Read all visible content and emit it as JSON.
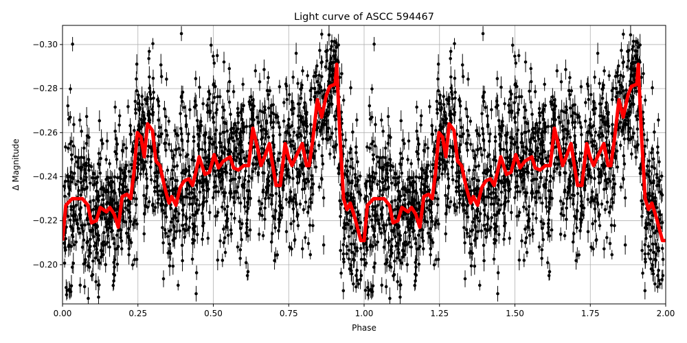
{
  "chart_data": {
    "type": "scatter",
    "title": "Light curve of ASCC 594467",
    "xlabel": "Phase",
    "ylabel": "Δ Magnitude",
    "xlim": [
      0,
      2
    ],
    "ylim": [
      -0.1822,
      -0.3087
    ],
    "y_inverted": true,
    "grid": true,
    "x_ticks": [
      "0.00",
      "0.25",
      "0.50",
      "0.75",
      "1.00",
      "1.25",
      "1.50",
      "1.75",
      "2.00"
    ],
    "x_tick_values": [
      0,
      0.25,
      0.5,
      0.75,
      1,
      1.25,
      1.5,
      1.75,
      2
    ],
    "y_ticks": [
      "−0.30",
      "−0.28",
      "−0.26",
      "−0.24",
      "−0.22",
      "−0.20"
    ],
    "y_tick_values": [
      -0.3,
      -0.28,
      -0.26,
      -0.24,
      -0.22,
      -0.2
    ],
    "scatter_color": "#000000",
    "model_color": "#ff0000",
    "model_curve": {
      "x": [
        0.0,
        0.011,
        0.032,
        0.066,
        0.084,
        0.096,
        0.112,
        0.125,
        0.146,
        0.157,
        0.171,
        0.185,
        0.198,
        0.214,
        0.226,
        0.237,
        0.248,
        0.26,
        0.271,
        0.282,
        0.298,
        0.31,
        0.323,
        0.339,
        0.353,
        0.362,
        0.376,
        0.39,
        0.403,
        0.419,
        0.431,
        0.442,
        0.453,
        0.472,
        0.487,
        0.503,
        0.517,
        0.533,
        0.556,
        0.567,
        0.583,
        0.601,
        0.617,
        0.631,
        0.647,
        0.658,
        0.67,
        0.686,
        0.697,
        0.708,
        0.722,
        0.738,
        0.749,
        0.761,
        0.777,
        0.795,
        0.809,
        0.818,
        0.831,
        0.845,
        0.859,
        0.875,
        0.886,
        0.904,
        0.909,
        0.92,
        0.932,
        0.943,
        0.954,
        0.97,
        0.989,
        1.0,
        1.011,
        1.032,
        1.066,
        1.084,
        1.096,
        1.112,
        1.125,
        1.146,
        1.157,
        1.171,
        1.185,
        1.198,
        1.214,
        1.226,
        1.237,
        1.248,
        1.26,
        1.271,
        1.282,
        1.298,
        1.31,
        1.323,
        1.339,
        1.353,
        1.362,
        1.376,
        1.39,
        1.403,
        1.419,
        1.431,
        1.442,
        1.453,
        1.472,
        1.487,
        1.503,
        1.517,
        1.533,
        1.556,
        1.567,
        1.583,
        1.601,
        1.617,
        1.631,
        1.647,
        1.658,
        1.67,
        1.686,
        1.697,
        1.708,
        1.722,
        1.738,
        1.749,
        1.761,
        1.777,
        1.795,
        1.809,
        1.818,
        1.831,
        1.845,
        1.859,
        1.875,
        1.886,
        1.904,
        1.909,
        1.92,
        1.932,
        1.943,
        1.954,
        1.97,
        1.989,
        2.0
      ],
      "y": [
        -0.211,
        -0.227,
        -0.23,
        -0.23,
        -0.227,
        -0.219,
        -0.22,
        -0.226,
        -0.224,
        -0.226,
        -0.223,
        -0.217,
        -0.231,
        -0.232,
        -0.23,
        -0.242,
        -0.26,
        -0.258,
        -0.249,
        -0.264,
        -0.261,
        -0.247,
        -0.245,
        -0.235,
        -0.228,
        -0.231,
        -0.227,
        -0.235,
        -0.238,
        -0.239,
        -0.236,
        -0.242,
        -0.249,
        -0.241,
        -0.242,
        -0.25,
        -0.244,
        -0.247,
        -0.249,
        -0.244,
        -0.243,
        -0.245,
        -0.245,
        -0.262,
        -0.253,
        -0.245,
        -0.249,
        -0.255,
        -0.245,
        -0.236,
        -0.236,
        -0.255,
        -0.249,
        -0.245,
        -0.25,
        -0.255,
        -0.245,
        -0.245,
        -0.258,
        -0.275,
        -0.267,
        -0.277,
        -0.281,
        -0.282,
        -0.291,
        -0.258,
        -0.23,
        -0.225,
        -0.228,
        -0.221,
        -0.211,
        -0.211,
        -0.227,
        -0.23,
        -0.23,
        -0.227,
        -0.219,
        -0.22,
        -0.226,
        -0.224,
        -0.226,
        -0.223,
        -0.217,
        -0.231,
        -0.232,
        -0.23,
        -0.242,
        -0.26,
        -0.258,
        -0.249,
        -0.264,
        -0.261,
        -0.247,
        -0.245,
        -0.235,
        -0.228,
        -0.231,
        -0.227,
        -0.235,
        -0.238,
        -0.239,
        -0.236,
        -0.242,
        -0.249,
        -0.241,
        -0.242,
        -0.25,
        -0.244,
        -0.247,
        -0.249,
        -0.244,
        -0.243,
        -0.245,
        -0.245,
        -0.262,
        -0.253,
        -0.245,
        -0.249,
        -0.255,
        -0.245,
        -0.236,
        -0.236,
        -0.255,
        -0.249,
        -0.245,
        -0.25,
        -0.255,
        -0.245,
        -0.245,
        -0.258,
        -0.275,
        -0.267,
        -0.277,
        -0.281,
        -0.282,
        -0.291,
        -0.258,
        -0.23,
        -0.225,
        -0.228,
        -0.221,
        -0.211,
        -0.211
      ]
    }
  }
}
